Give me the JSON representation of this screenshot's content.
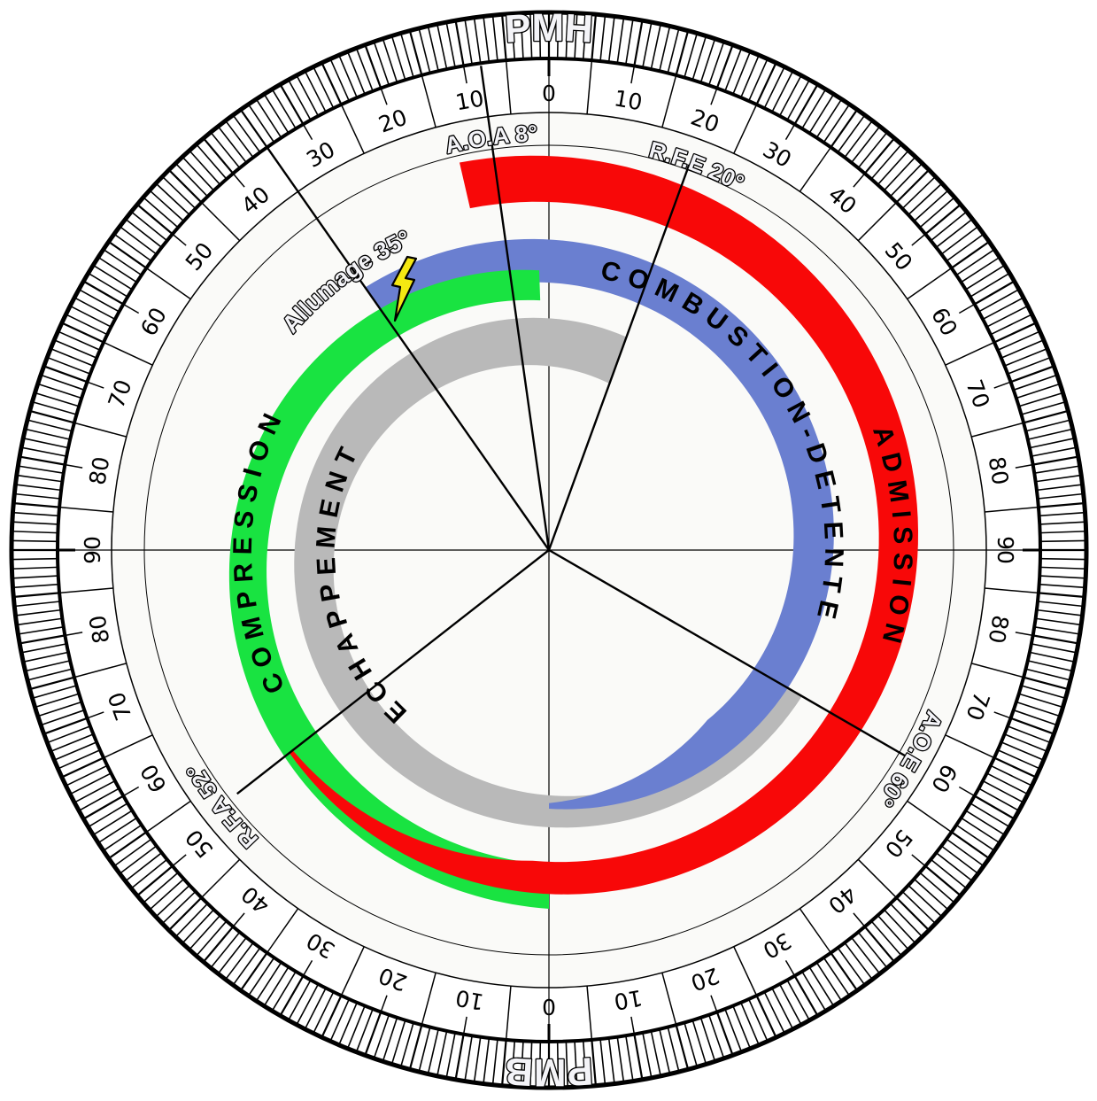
{
  "markers": {
    "top": "PMH",
    "bottom": "PMB"
  },
  "scale": {
    "top_half_labels": [
      "0",
      "10",
      "20",
      "30",
      "40",
      "50",
      "60",
      "70",
      "80",
      "90"
    ],
    "bottom_half_labels": [
      "90",
      "80",
      "70",
      "60",
      "50",
      "40",
      "30",
      "20",
      "10",
      "0"
    ]
  },
  "events": [
    {
      "key": "aoa",
      "label": "A.O.A 8°",
      "angle_deg": -8
    },
    {
      "key": "rfe",
      "label": "R.F.E 20°",
      "angle_deg": 20
    },
    {
      "key": "allumage",
      "label": "Allumage 35°",
      "angle_deg": -35
    },
    {
      "key": "aoe",
      "label": "A.O.E 60°",
      "angle_deg": 120
    },
    {
      "key": "rfa",
      "label": "R.F.A 52°",
      "angle_deg": 232
    }
  ],
  "phases": [
    {
      "key": "admission",
      "label": "ADMISSION",
      "color": "#f80808"
    },
    {
      "key": "compression",
      "label": "COMPRESSION",
      "color": "#19e341"
    },
    {
      "key": "combustion",
      "label": "COMBUSTION-DETENTE",
      "color": "#6a7fd0"
    },
    {
      "key": "echappement",
      "label": "ECHAPPEMENT",
      "color": "#b9b9b9"
    }
  ],
  "icons": {
    "ignition": "lightning-bolt-icon",
    "ignition_color": "#f5e812"
  }
}
